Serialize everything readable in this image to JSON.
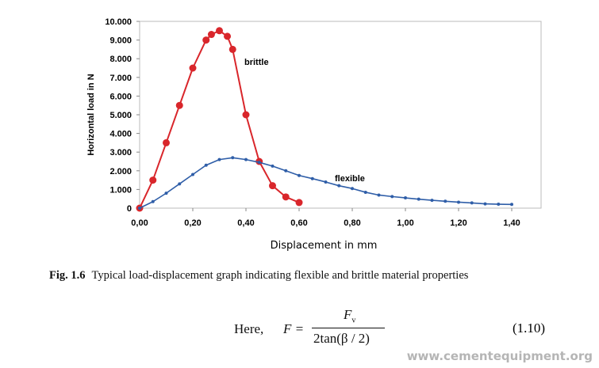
{
  "chart_data": {
    "type": "line",
    "xlabel": "Displacement in mm",
    "ylabel": "Horizontal load in N",
    "xlim": [
      0,
      1.4
    ],
    "ylim": [
      0,
      10000
    ],
    "xticks": [
      "0,00",
      "0,20",
      "0,40",
      "0,60",
      "0,80",
      "1,00",
      "1,20",
      "1,40"
    ],
    "yticks": [
      "0",
      "1.000",
      "2.000",
      "3.000",
      "4.000",
      "5.000",
      "6.000",
      "7.000",
      "8.000",
      "9.000",
      "10.000"
    ],
    "series": [
      {
        "name": "brittle",
        "color": "#d9262b",
        "x": [
          0,
          0.05,
          0.1,
          0.15,
          0.2,
          0.25,
          0.27,
          0.3,
          0.33,
          0.35,
          0.4,
          0.45,
          0.5,
          0.55,
          0.6
        ],
        "y": [
          0,
          1500,
          3500,
          5500,
          7500,
          9000,
          9300,
          9500,
          9200,
          8500,
          5000,
          2500,
          1200,
          600,
          300
        ]
      },
      {
        "name": "flexible",
        "color": "#2f5ea8",
        "x": [
          0,
          0.05,
          0.1,
          0.15,
          0.2,
          0.25,
          0.3,
          0.35,
          0.4,
          0.45,
          0.5,
          0.55,
          0.6,
          0.65,
          0.7,
          0.75,
          0.8,
          0.85,
          0.9,
          0.95,
          1.0,
          1.05,
          1.1,
          1.15,
          1.2,
          1.25,
          1.3,
          1.35,
          1.4
        ],
        "y": [
          0,
          350,
          800,
          1300,
          1800,
          2300,
          2600,
          2700,
          2600,
          2450,
          2250,
          2000,
          1750,
          1580,
          1400,
          1200,
          1050,
          850,
          700,
          620,
          550,
          480,
          420,
          370,
          320,
          280,
          230,
          210,
          200
        ]
      }
    ]
  },
  "caption": {
    "label": "Fig. 1.6",
    "text": "Typical load-displacement graph indicating flexible and brittle material properties"
  },
  "equation": {
    "here": "Here,",
    "lhs": "F =",
    "numerator": "F",
    "numerator_sub": "v",
    "denominator": "2tan(β / 2)",
    "number": "(1.10)"
  },
  "watermark": "www.cementequipment.org"
}
